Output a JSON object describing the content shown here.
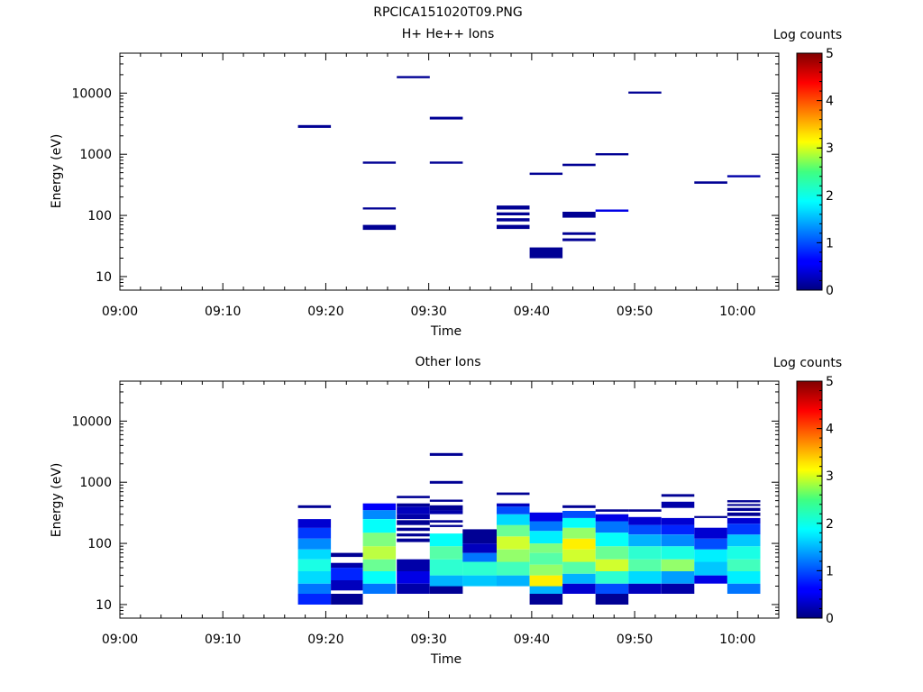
{
  "page_title": "RPCICA151020T09.PNG",
  "chart_data": [
    {
      "type": "heatmap",
      "title": "H+ He++ Ions",
      "xlabel": "Time",
      "ylabel": "Energy (eV)",
      "x_ticks": [
        "09:00",
        "09:10",
        "09:20",
        "09:30",
        "09:40",
        "09:50",
        "10:00"
      ],
      "x_tick_minutes": [
        0,
        10,
        20,
        30,
        40,
        50,
        60
      ],
      "xlim_minutes": [
        0,
        64
      ],
      "y_scale": "log",
      "ylim": [
        6,
        45000
      ],
      "y_ticks": [
        10,
        100,
        1000,
        10000
      ],
      "y_tick_labels": [
        "10",
        "100",
        "1000",
        "10000"
      ],
      "colorbar": {
        "label": "Log counts",
        "range": [
          0,
          5
        ],
        "ticks": [
          "0",
          "1",
          "2",
          "3",
          "4",
          "5"
        ],
        "colormap": "jet"
      },
      "cells": [
        {
          "t": [
            17.3,
            20.5
          ],
          "e": [
            2700,
            3000
          ],
          "v": 0.1
        },
        {
          "t": [
            23.6,
            26.8
          ],
          "e": [
            700,
            760
          ],
          "v": 0.1
        },
        {
          "t": [
            23.6,
            26.8
          ],
          "e": [
            125,
            135
          ],
          "v": 0.1
        },
        {
          "t": [
            23.6,
            26.8
          ],
          "e": [
            58,
            70
          ],
          "v": 0.1
        },
        {
          "t": [
            26.9,
            30.1
          ],
          "e": [
            17500,
            19000
          ],
          "v": 0.1
        },
        {
          "t": [
            30.1,
            33.3
          ],
          "e": [
            3700,
            4100
          ],
          "v": 0.1
        },
        {
          "t": [
            30.1,
            33.3
          ],
          "e": [
            700,
            760
          ],
          "v": 0.1
        },
        {
          "t": [
            36.6,
            39.8
          ],
          "e": [
            125,
            145
          ],
          "v": 0.1
        },
        {
          "t": [
            36.6,
            39.8
          ],
          "e": [
            100,
            112
          ],
          "v": 0.1
        },
        {
          "t": [
            36.6,
            39.8
          ],
          "e": [
            80,
            90
          ],
          "v": 0.1
        },
        {
          "t": [
            36.6,
            39.8
          ],
          "e": [
            60,
            70
          ],
          "v": 0.1
        },
        {
          "t": [
            39.8,
            43.0
          ],
          "e": [
            460,
            500
          ],
          "v": 0.1
        },
        {
          "t": [
            39.8,
            43.0
          ],
          "e": [
            20,
            30
          ],
          "v": 0.1
        },
        {
          "t": [
            43.0,
            46.2
          ],
          "e": [
            640,
            700
          ],
          "v": 0.1
        },
        {
          "t": [
            43.0,
            46.2
          ],
          "e": [
            92,
            115
          ],
          "v": 0.1
        },
        {
          "t": [
            43.0,
            46.2
          ],
          "e": [
            48,
            53
          ],
          "v": 0.1
        },
        {
          "t": [
            43.0,
            46.2
          ],
          "e": [
            38,
            42
          ],
          "v": 0.1
        },
        {
          "t": [
            46.2,
            49.4
          ],
          "e": [
            960,
            1040
          ],
          "v": 0.1
        },
        {
          "t": [
            46.2,
            49.4
          ],
          "e": [
            115,
            125
          ],
          "v": 0.5
        },
        {
          "t": [
            49.4,
            52.6
          ],
          "e": [
            9800,
            10600
          ],
          "v": 0.1
        },
        {
          "t": [
            55.8,
            59.0
          ],
          "e": [
            330,
            360
          ],
          "v": 0.1
        },
        {
          "t": [
            59.0,
            62.2
          ],
          "e": [
            420,
            455
          ],
          "v": 0.2
        }
      ]
    },
    {
      "type": "heatmap",
      "title": "Other Ions",
      "xlabel": "Time",
      "ylabel": "Energy (eV)",
      "x_ticks": [
        "09:00",
        "09:10",
        "09:20",
        "09:30",
        "09:40",
        "09:50",
        "10:00"
      ],
      "x_tick_minutes": [
        0,
        10,
        20,
        30,
        40,
        50,
        60
      ],
      "xlim_minutes": [
        0,
        64
      ],
      "y_scale": "log",
      "ylim": [
        6,
        45000
      ],
      "y_ticks": [
        10,
        100,
        1000,
        10000
      ],
      "y_tick_labels": [
        "10",
        "100",
        "1000",
        "10000"
      ],
      "colorbar": {
        "label": "Log counts",
        "range": [
          0,
          5
        ],
        "ticks": [
          "0",
          "1",
          "2",
          "3",
          "4",
          "5"
        ],
        "colormap": "jet"
      },
      "columns": [
        {
          "t": [
            17.3,
            20.5
          ],
          "bins": [
            [
              10,
              15,
              0.8
            ],
            [
              15,
              22,
              1.2
            ],
            [
              22,
              35,
              1.7
            ],
            [
              35,
              55,
              2.0
            ],
            [
              55,
              80,
              1.7
            ],
            [
              80,
              120,
              1.3
            ],
            [
              120,
              180,
              0.9
            ],
            [
              180,
              250,
              0.4
            ],
            [
              380,
              420,
              0.1
            ]
          ]
        },
        {
          "t": [
            20.5,
            23.6
          ],
          "bins": [
            [
              10,
              15,
              0.1
            ],
            [
              17,
              25,
              0.3
            ],
            [
              25,
              40,
              0.8
            ],
            [
              40,
              48,
              0.2
            ],
            [
              60,
              70,
              0.1
            ]
          ]
        },
        {
          "t": [
            23.6,
            26.8
          ],
          "bins": [
            [
              15,
              22,
              1.2
            ],
            [
              22,
              35,
              1.9
            ],
            [
              35,
              55,
              2.4
            ],
            [
              55,
              90,
              2.8
            ],
            [
              90,
              150,
              2.5
            ],
            [
              150,
              250,
              1.9
            ],
            [
              250,
              350,
              1.3
            ],
            [
              350,
              450,
              0.6
            ]
          ]
        },
        {
          "t": [
            26.9,
            30.1
          ],
          "bins": [
            [
              15,
              22,
              0.2
            ],
            [
              22,
              35,
              0.5
            ],
            [
              35,
              55,
              0.2
            ],
            [
              105,
              120,
              0.1
            ],
            [
              130,
              145,
              0.1
            ],
            [
              160,
              180,
              0.1
            ],
            [
              200,
              240,
              0.1
            ],
            [
              250,
              300,
              0.2
            ],
            [
              300,
              400,
              0.3
            ],
            [
              400,
              450,
              0.1
            ],
            [
              550,
              600,
              0.1
            ]
          ]
        },
        {
          "t": [
            30.1,
            33.3
          ],
          "bins": [
            [
              15,
              20,
              0.1
            ],
            [
              20,
              30,
              1.5
            ],
            [
              30,
              55,
              2.1
            ],
            [
              55,
              90,
              2.3
            ],
            [
              90,
              145,
              1.9
            ],
            [
              185,
              200,
              0.1
            ],
            [
              220,
              240,
              0.1
            ],
            [
              300,
              350,
              0.2
            ],
            [
              350,
              420,
              0.1
            ],
            [
              480,
              520,
              0.1
            ],
            [
              950,
              1050,
              0.1
            ],
            [
              2700,
              3000,
              0.1
            ]
          ]
        },
        {
          "t": [
            33.3,
            36.6
          ],
          "bins": [
            [
              20,
              30,
              1.6
            ],
            [
              30,
              50,
              2.1
            ],
            [
              50,
              70,
              1.2
            ],
            [
              70,
              100,
              0.3
            ],
            [
              100,
              170,
              0.1
            ]
          ]
        },
        {
          "t": [
            36.6,
            39.8
          ],
          "bins": [
            [
              20,
              30,
              1.5
            ],
            [
              30,
              50,
              2.2
            ],
            [
              50,
              80,
              2.6
            ],
            [
              80,
              130,
              2.9
            ],
            [
              130,
              200,
              2.4
            ],
            [
              200,
              300,
              1.7
            ],
            [
              300,
              400,
              1.0
            ],
            [
              400,
              450,
              0.3
            ],
            [
              620,
              680,
              0.1
            ]
          ]
        },
        {
          "t": [
            39.8,
            43.0
          ],
          "bins": [
            [
              10,
              15,
              0.1
            ],
            [
              15,
              20,
              1.5
            ],
            [
              20,
              30,
              3.2
            ],
            [
              30,
              45,
              2.6
            ],
            [
              45,
              70,
              2.3
            ],
            [
              70,
              100,
              2.5
            ],
            [
              100,
              160,
              1.8
            ],
            [
              160,
              230,
              1.2
            ],
            [
              230,
              320,
              0.5
            ]
          ]
        },
        {
          "t": [
            43.0,
            46.2
          ],
          "bins": [
            [
              15,
              22,
              0.4
            ],
            [
              22,
              32,
              1.5
            ],
            [
              32,
              50,
              2.3
            ],
            [
              50,
              80,
              2.9
            ],
            [
              80,
              120,
              3.2
            ],
            [
              120,
              180,
              2.6
            ],
            [
              180,
              260,
              1.9
            ],
            [
              260,
              340,
              1.0
            ],
            [
              380,
              420,
              0.1
            ]
          ]
        },
        {
          "t": [
            46.2,
            49.4
          ],
          "bins": [
            [
              10,
              15,
              0.1
            ],
            [
              15,
              22,
              1.0
            ],
            [
              22,
              35,
              2.1
            ],
            [
              35,
              55,
              2.9
            ],
            [
              55,
              90,
              2.4
            ],
            [
              90,
              150,
              1.9
            ],
            [
              150,
              230,
              1.2
            ],
            [
              230,
              300,
              0.5
            ],
            [
              330,
              360,
              0.1
            ]
          ]
        },
        {
          "t": [
            49.4,
            52.6
          ],
          "bins": [
            [
              15,
              22,
              0.3
            ],
            [
              22,
              35,
              1.7
            ],
            [
              35,
              55,
              2.3
            ],
            [
              55,
              90,
              2.1
            ],
            [
              90,
              140,
              1.5
            ],
            [
              140,
              200,
              1.0
            ],
            [
              200,
              270,
              0.4
            ],
            [
              330,
              360,
              0.1
            ]
          ]
        },
        {
          "t": [
            52.6,
            55.8
          ],
          "bins": [
            [
              15,
              22,
              0.2
            ],
            [
              22,
              35,
              1.4
            ],
            [
              35,
              55,
              2.6
            ],
            [
              55,
              90,
              2.0
            ],
            [
              90,
              140,
              1.3
            ],
            [
              140,
              200,
              0.8
            ],
            [
              200,
              260,
              0.4
            ],
            [
              380,
              480,
              0.2
            ],
            [
              580,
              640,
              0.1
            ]
          ]
        },
        {
          "t": [
            55.8,
            59.0
          ],
          "bins": [
            [
              22,
              30,
              0.5
            ],
            [
              30,
              50,
              1.6
            ],
            [
              50,
              80,
              1.8
            ],
            [
              80,
              120,
              1.0
            ],
            [
              120,
              180,
              0.4
            ],
            [
              260,
              280,
              0.1
            ]
          ]
        },
        {
          "t": [
            59.0,
            62.2
          ],
          "bins": [
            [
              15,
              22,
              1.2
            ],
            [
              22,
              35,
              1.8
            ],
            [
              35,
              55,
              2.2
            ],
            [
              55,
              90,
              2.0
            ],
            [
              90,
              140,
              1.6
            ],
            [
              140,
              210,
              0.9
            ],
            [
              210,
              260,
              0.4
            ],
            [
              280,
              320,
              0.1
            ],
            [
              340,
              380,
              0.1
            ],
            [
              410,
              440,
              0.1
            ],
            [
              470,
              510,
              0.1
            ]
          ]
        }
      ]
    }
  ]
}
